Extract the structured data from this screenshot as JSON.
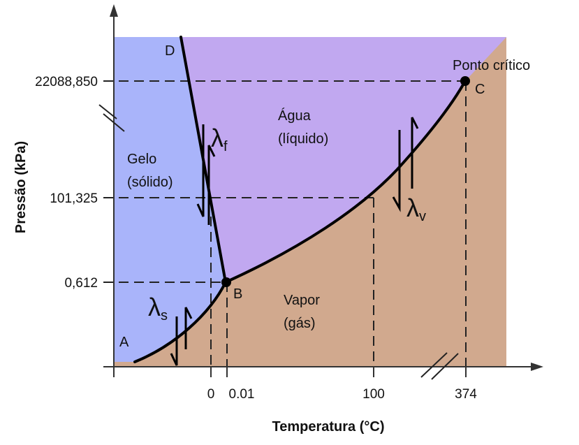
{
  "axes": {
    "x_title": "Temperatura (°C)",
    "y_title": "Pressão (kPa)",
    "x_ticks": [
      "0",
      "0.01",
      "100",
      "374"
    ],
    "y_ticks": [
      "22088,850",
      "101,325",
      "0,612"
    ]
  },
  "regions": {
    "solid_line1": "Gelo",
    "solid_line2": "(sólido)",
    "liquid_line1": "Água",
    "liquid_line2": "(líquido)",
    "vapor_line1": "Vapor",
    "vapor_line2": "(gás)"
  },
  "points": {
    "a": "A",
    "b": "B",
    "c": "C",
    "d": "D",
    "critical": "Ponto crítico"
  },
  "latent_heats": {
    "fusion": {
      "symbol": "λ",
      "sub": "f"
    },
    "vaporization": {
      "symbol": "λ",
      "sub": "v"
    },
    "sublimation": {
      "symbol": "λ",
      "sub": "s"
    }
  },
  "colors": {
    "solid": "#a9b4fa",
    "liquid": "#c1a8f0",
    "vapor": "#d1a98e",
    "line": "#000000"
  }
}
